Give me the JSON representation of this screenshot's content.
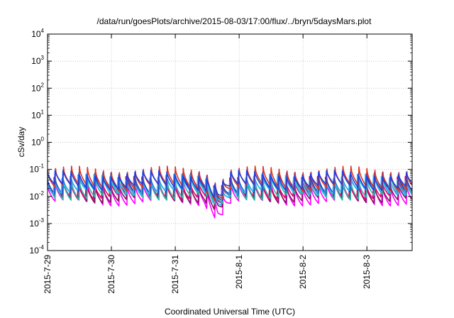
{
  "chart_data": {
    "type": "line",
    "title": "/data/run/goesPlots/archive/2015-08-03/17:00/flux/../bryn/5daysMars.plot",
    "xlabel": "Coordinated Universal Time (UTC)",
    "ylabel": "cSv/day",
    "x_ticks": [
      "2015-7-29",
      "2015-7-30",
      "2015-7-31",
      "2015-8-1",
      "2015-8-2",
      "2015-8-3"
    ],
    "xlim": [
      "2015-07-29T00:00",
      "2015-08-03T17:00"
    ],
    "y_scale": "log",
    "ylim": [
      0.0001,
      10000
    ],
    "y_ticks": [
      {
        "base": "10",
        "exp": "-4"
      },
      {
        "base": "10",
        "exp": "-3"
      },
      {
        "base": "10",
        "exp": "-2"
      },
      {
        "base": "10",
        "exp": "-1"
      },
      {
        "base": "10",
        "exp": "0"
      },
      {
        "base": "10",
        "exp": "1"
      },
      {
        "base": "10",
        "exp": "2"
      },
      {
        "base": "10",
        "exp": "3"
      },
      {
        "base": "10",
        "exp": "4"
      }
    ],
    "grid": true,
    "sawtooth_period_hours": 3,
    "dip": {
      "time": "2015-07-31T16:00",
      "min_value": 0.0014
    },
    "series": [
      {
        "color": "#ff00ff",
        "peak": 0.03,
        "trough": 0.0055
      },
      {
        "color": "#7a1a5a",
        "peak": 0.04,
        "trough": 0.0075
      },
      {
        "color": "#e8006a",
        "peak": 0.06,
        "trough": 0.01
      },
      {
        "color": "#2ab8a8",
        "peak": 0.05,
        "trough": 0.009
      },
      {
        "color": "#2040c8",
        "peak": 0.08,
        "trough": 0.016
      },
      {
        "color": "#2db8f0",
        "peak": 0.07,
        "trough": 0.014
      },
      {
        "color": "#e03020",
        "peak": 0.1,
        "trough": 0.02
      },
      {
        "color": "#1a3fe0",
        "peak": 0.095,
        "trough": 0.022
      }
    ]
  }
}
